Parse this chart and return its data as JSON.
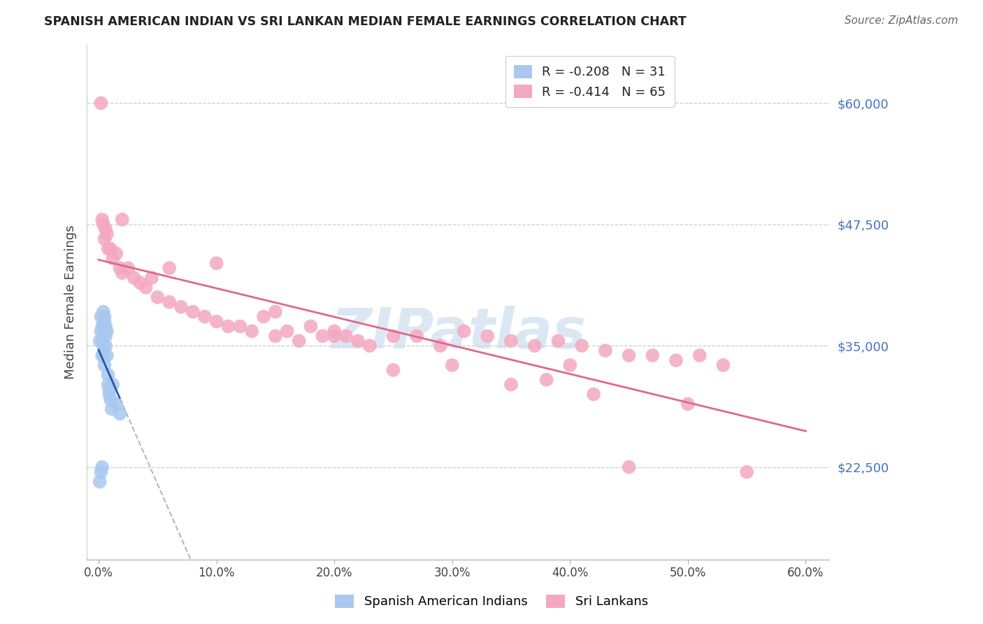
{
  "title": "SPANISH AMERICAN INDIAN VS SRI LANKAN MEDIAN FEMALE EARNINGS CORRELATION CHART",
  "source": "Source: ZipAtlas.com",
  "ylabel": "Median Female Earnings",
  "xlabel_ticks": [
    "0.0%",
    "10.0%",
    "20.0%",
    "30.0%",
    "40.0%",
    "50.0%",
    "60.0%"
  ],
  "xlabel_vals": [
    0.0,
    0.1,
    0.2,
    0.3,
    0.4,
    0.5,
    0.6
  ],
  "ytick_labels": [
    "$22,500",
    "$35,000",
    "$47,500",
    "$60,000"
  ],
  "ytick_vals": [
    22500,
    35000,
    47500,
    60000
  ],
  "ylim": [
    13000,
    66000
  ],
  "xlim": [
    -0.01,
    0.62
  ],
  "legend_entries": [
    {
      "label": "R = -0.208   N = 31",
      "color": "#a8c8f0"
    },
    {
      "label": "R = -0.414   N = 65",
      "color": "#f4b8c8"
    }
  ],
  "legend_labels": [
    "Spanish American Indians",
    "Sri Lankans"
  ],
  "watermark": "ZIPatlas",
  "blue_scatter": "#a8c8f0",
  "pink_scatter": "#f4a8c0",
  "blue_line_color": "#2255aa",
  "pink_line_color": "#e06888",
  "dashed_line_color": "#b0b8c8",
  "blue_x": [
    0.001,
    0.001,
    0.002,
    0.002,
    0.002,
    0.003,
    0.003,
    0.003,
    0.003,
    0.004,
    0.004,
    0.004,
    0.004,
    0.005,
    0.005,
    0.005,
    0.005,
    0.006,
    0.006,
    0.006,
    0.007,
    0.007,
    0.008,
    0.008,
    0.009,
    0.009,
    0.01,
    0.011,
    0.012,
    0.015,
    0.018
  ],
  "blue_y": [
    21000,
    35500,
    22000,
    38000,
    36500,
    22500,
    37000,
    35500,
    34000,
    38500,
    37000,
    35000,
    34000,
    38000,
    37500,
    36500,
    33000,
    37000,
    36000,
    35000,
    36500,
    34000,
    32000,
    31000,
    30500,
    30000,
    29500,
    28500,
    31000,
    29000,
    28000
  ],
  "pink_x": [
    0.002,
    0.003,
    0.004,
    0.005,
    0.006,
    0.007,
    0.008,
    0.01,
    0.012,
    0.015,
    0.018,
    0.02,
    0.025,
    0.03,
    0.035,
    0.04,
    0.045,
    0.05,
    0.06,
    0.07,
    0.08,
    0.09,
    0.1,
    0.11,
    0.12,
    0.13,
    0.14,
    0.15,
    0.16,
    0.17,
    0.18,
    0.19,
    0.2,
    0.21,
    0.22,
    0.23,
    0.25,
    0.27,
    0.29,
    0.31,
    0.33,
    0.35,
    0.37,
    0.39,
    0.41,
    0.43,
    0.45,
    0.47,
    0.49,
    0.51,
    0.53,
    0.02,
    0.06,
    0.1,
    0.15,
    0.2,
    0.25,
    0.3,
    0.35,
    0.4,
    0.45,
    0.5,
    0.55,
    0.42,
    0.38
  ],
  "pink_y": [
    60000,
    48000,
    47500,
    46000,
    47000,
    46500,
    45000,
    45000,
    44000,
    44500,
    43000,
    42500,
    43000,
    42000,
    41500,
    41000,
    42000,
    40000,
    39500,
    39000,
    38500,
    38000,
    37500,
    37000,
    37000,
    36500,
    38000,
    36000,
    36500,
    35500,
    37000,
    36000,
    36500,
    36000,
    35500,
    35000,
    36000,
    36000,
    35000,
    36500,
    36000,
    35500,
    35000,
    35500,
    35000,
    34500,
    34000,
    34000,
    33500,
    34000,
    33000,
    48000,
    43000,
    43500,
    38500,
    36000,
    32500,
    33000,
    31000,
    33000,
    22500,
    29000,
    22000,
    30000,
    31500
  ]
}
